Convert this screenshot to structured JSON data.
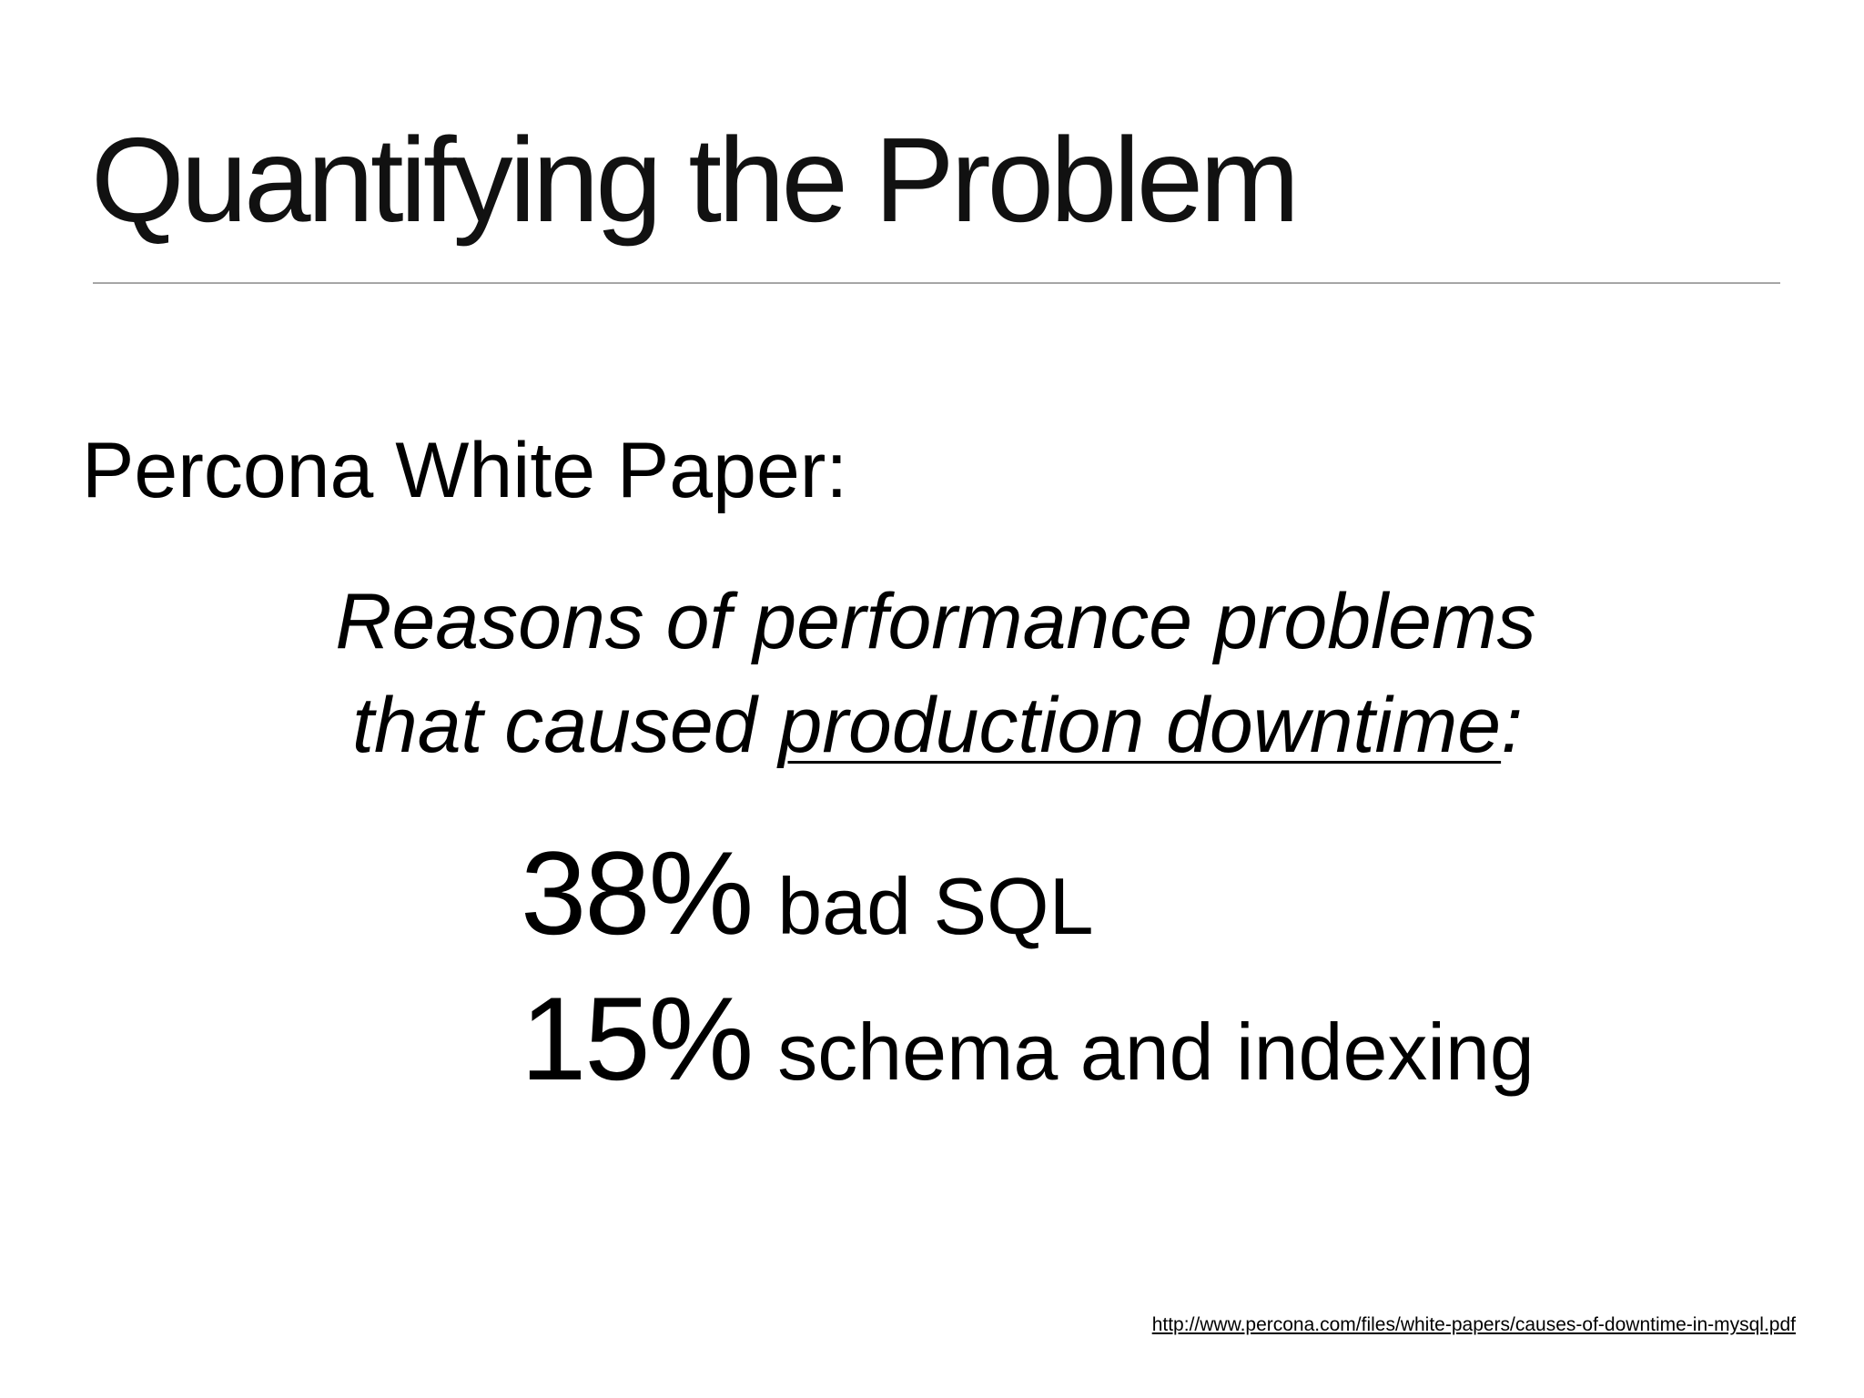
{
  "slide": {
    "title": "Quantifying the Problem",
    "source_heading": "Percona White Paper:",
    "reasons": {
      "line1": "Reasons of performance problems",
      "line2_prefix": "that caused ",
      "line2_underlined": "production downtime",
      "line2_suffix": ":"
    },
    "stats": [
      {
        "percent": "38%",
        "label": "bad SQL"
      },
      {
        "percent": "15%",
        "label": "schema and indexing"
      }
    ],
    "source_url": "http://www.percona.com/files/white-papers/causes-of-downtime-in-mysql.pdf"
  }
}
